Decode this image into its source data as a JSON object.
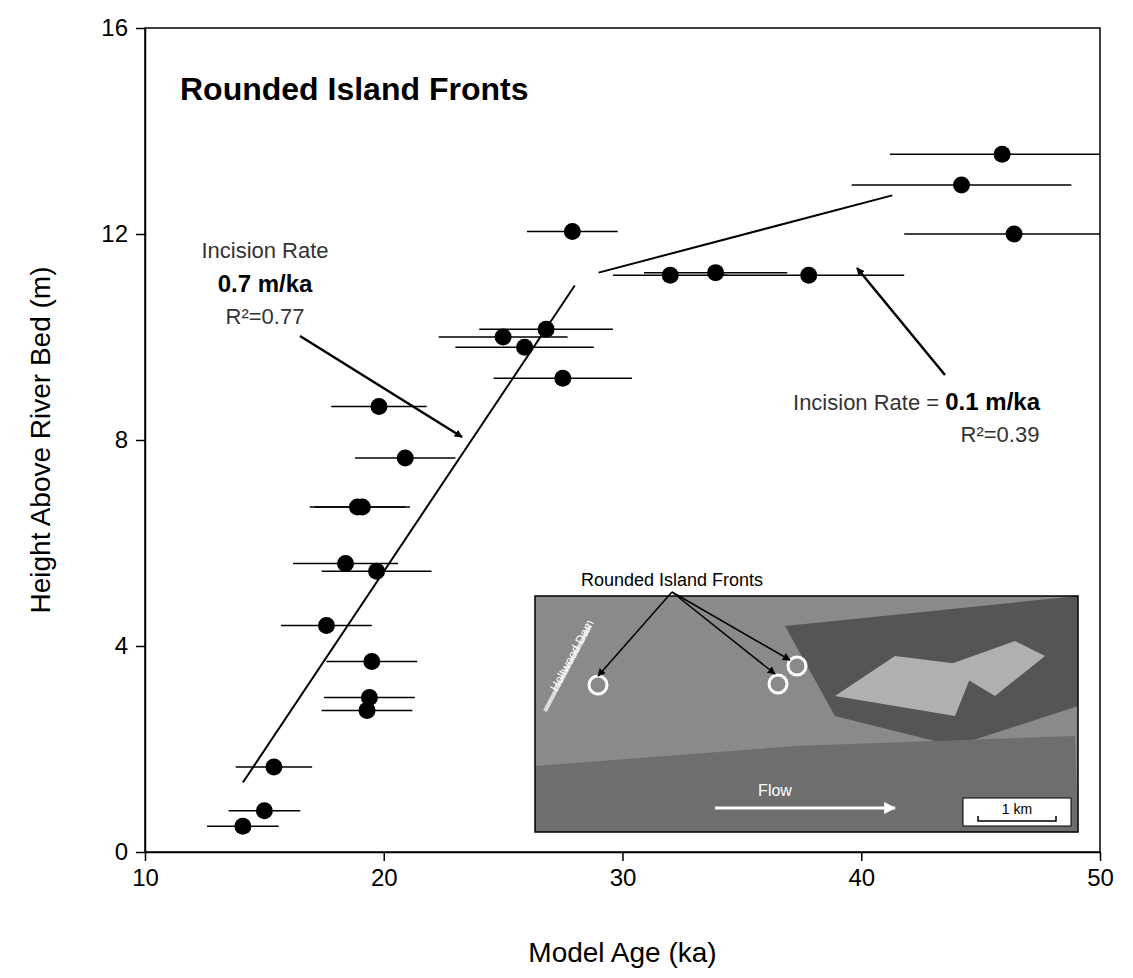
{
  "chart_data": {
    "type": "scatter",
    "title": "Rounded Island Fronts",
    "x_label": "Model Age (ka)",
    "y_label": "Height Above River Bed (m)",
    "xlim": [
      10,
      50
    ],
    "ylim": [
      0,
      16
    ],
    "xticks": [
      10,
      20,
      30,
      40,
      50
    ],
    "yticks": [
      0,
      4,
      8,
      12,
      16
    ],
    "grid": false,
    "series": [
      {
        "type": "scatter",
        "color": "#000000",
        "marker": "circle",
        "x": [
          45.9,
          44.2,
          46.4,
          27.9,
          32.0,
          33.9,
          37.8,
          25.0,
          26.8,
          25.9,
          27.5,
          19.8,
          20.9,
          18.9,
          19.1,
          18.4,
          19.7,
          17.6,
          19.5,
          19.4,
          19.3,
          15.4,
          15.0,
          14.1
        ],
        "values": [
          13.55,
          12.95,
          12.0,
          12.05,
          11.2,
          11.25,
          11.2,
          10.0,
          10.15,
          9.8,
          9.2,
          8.65,
          7.65,
          6.7,
          6.7,
          5.6,
          5.45,
          4.4,
          3.7,
          3.0,
          2.75,
          1.65,
          0.8,
          0.5
        ],
        "x_error": [
          4.7,
          4.6,
          4.6,
          1.9,
          2.4,
          3.0,
          4.0,
          2.7,
          2.8,
          2.9,
          2.9,
          2.0,
          2.1,
          2.0,
          2.0,
          2.2,
          2.3,
          1.9,
          1.9,
          1.9,
          1.9,
          1.6,
          1.5,
          1.5
        ]
      },
      {
        "type": "line",
        "color": "#000000",
        "line_style": "solid",
        "x": [
          14.1,
          28.0
        ],
        "values": [
          1.35,
          11.0
        ]
      },
      {
        "type": "line",
        "color": "#000000",
        "line_style": "solid",
        "x": [
          29.0,
          41.3
        ],
        "values": [
          11.25,
          12.75
        ]
      }
    ],
    "annotations": [
      {
        "text": [
          "Incision Rate",
          "0.7 m/ka",
          "R²=0.77"
        ]
      },
      {
        "text": [
          "Incision Rate = ",
          "0.1 m/ka",
          "R²=0.39"
        ]
      }
    ],
    "inset": {
      "title": "Rounded Island Fronts",
      "labels": [
        "Holtwood Dam",
        "Flow",
        "1 km"
      ]
    }
  }
}
